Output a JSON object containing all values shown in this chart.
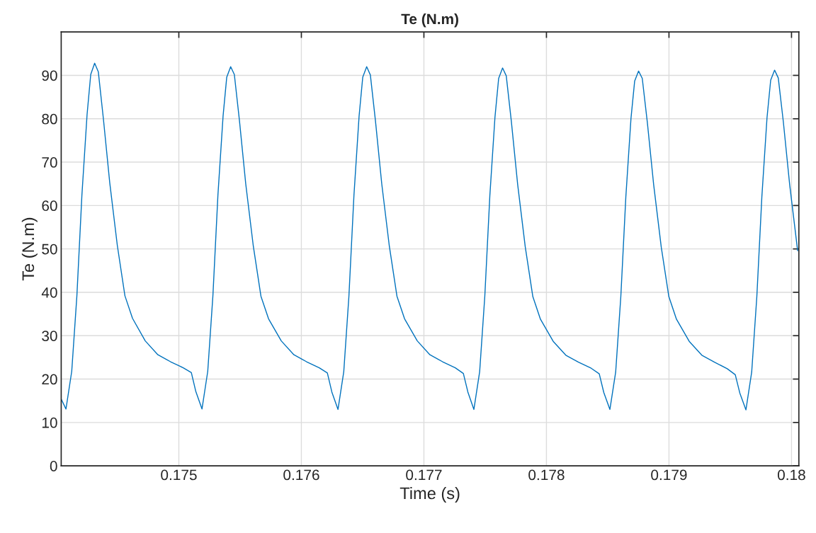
{
  "chart_data": {
    "type": "line",
    "title": "Te (N.m)",
    "xlabel": "Time (s)",
    "ylabel": "Te (N.m)",
    "xlim": [
      0.17404,
      0.18006
    ],
    "ylim": [
      0,
      100
    ],
    "xticks": [
      0.175,
      0.176,
      0.177,
      0.178,
      0.179,
      0.18
    ],
    "yticks": [
      0,
      10,
      20,
      30,
      40,
      50,
      60,
      70,
      80,
      90
    ],
    "grid": true,
    "legend": false,
    "marker": "none",
    "line_style": "solid",
    "series": [
      {
        "color": "#0072bd",
        "x": [
          0.17404,
          0.174079,
          0.174126,
          0.174168,
          0.174209,
          0.174251,
          0.174281,
          0.174313,
          0.174343,
          0.174385,
          0.174436,
          0.174498,
          0.17456,
          0.174622,
          0.174726,
          0.174829,
          0.174932,
          0.175036,
          0.175102,
          0.175139,
          0.175189,
          0.175236,
          0.175278,
          0.175319,
          0.175361,
          0.175391,
          0.175423,
          0.175453,
          0.175495,
          0.175546,
          0.175608,
          0.17567,
          0.175732,
          0.175836,
          0.175939,
          0.176042,
          0.176146,
          0.176212,
          0.176249,
          0.176299,
          0.176346,
          0.176388,
          0.176429,
          0.176471,
          0.176501,
          0.176533,
          0.176563,
          0.176605,
          0.176656,
          0.176718,
          0.17678,
          0.176842,
          0.176946,
          0.177049,
          0.177152,
          0.177256,
          0.177322,
          0.177359,
          0.177408,
          0.177455,
          0.177497,
          0.177538,
          0.17758,
          0.17761,
          0.177642,
          0.177672,
          0.177714,
          0.177765,
          0.177827,
          0.177889,
          0.177951,
          0.178055,
          0.178158,
          0.178261,
          0.178365,
          0.178431,
          0.178468,
          0.178518,
          0.178565,
          0.178607,
          0.178648,
          0.17869,
          0.17872,
          0.178752,
          0.178782,
          0.178824,
          0.178875,
          0.178937,
          0.178999,
          0.179061,
          0.179165,
          0.179268,
          0.179371,
          0.179475,
          0.179541,
          0.179578,
          0.179628,
          0.179675,
          0.179717,
          0.179758,
          0.1798,
          0.17983,
          0.179862,
          0.179892,
          0.179934,
          0.179985,
          0.18005
        ],
        "values": [
          15.4,
          13.1,
          21.8,
          39.2,
          62.4,
          80.9,
          90.2,
          92.8,
          90.8,
          79.8,
          65.3,
          50.8,
          39.2,
          34.0,
          28.8,
          25.6,
          24.0,
          22.6,
          21.5,
          17.1,
          13.1,
          21.8,
          39.2,
          62.4,
          80.6,
          89.6,
          92.0,
          90.2,
          79.5,
          65.0,
          50.6,
          39.1,
          33.9,
          28.8,
          25.6,
          24.0,
          22.6,
          21.4,
          17.0,
          13.0,
          21.7,
          39.1,
          62.3,
          80.6,
          89.6,
          92.0,
          90.1,
          79.4,
          65.0,
          50.6,
          39.1,
          33.9,
          28.8,
          25.6,
          24.0,
          22.6,
          21.3,
          17.0,
          13.0,
          21.7,
          39.1,
          62.2,
          80.4,
          89.3,
          91.7,
          89.9,
          79.3,
          64.9,
          50.5,
          39.0,
          33.8,
          28.7,
          25.5,
          23.9,
          22.5,
          21.2,
          16.9,
          13.0,
          21.6,
          39.0,
          62.0,
          80.1,
          88.7,
          91.0,
          89.3,
          79.0,
          64.8,
          50.4,
          39.0,
          33.8,
          28.7,
          25.5,
          23.9,
          22.4,
          21.0,
          16.8,
          12.9,
          21.6,
          39.0,
          62.0,
          80.2,
          88.9,
          91.2,
          89.4,
          79.1,
          64.8,
          49.6
        ]
      }
    ]
  }
}
